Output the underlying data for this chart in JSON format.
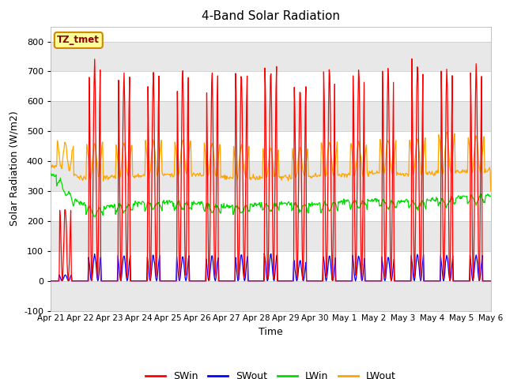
{
  "title": "4-Band Solar Radiation",
  "xlabel": "Time",
  "ylabel": "Solar Radiation (W/m2)",
  "ylim": [
    -100,
    850
  ],
  "yticks": [
    -100,
    0,
    100,
    200,
    300,
    400,
    500,
    600,
    700,
    800
  ],
  "colors": {
    "SWin": "#ff0000",
    "SWout": "#0000ff",
    "LWin": "#00dd00",
    "LWout": "#ffa500"
  },
  "fig_bg": "#ffffff",
  "plot_bg": "#ffffff",
  "grid_color": "#cccccc",
  "band_color": "#e8e8e8",
  "station_label": "TZ_tmet",
  "station_label_fg": "#8B0000",
  "station_label_bg": "#ffff99",
  "station_label_border": "#cc8800",
  "tick_labels": [
    "Apr 21",
    "Apr 22",
    "Apr 23",
    "Apr 24",
    "Apr 25",
    "Apr 26",
    "Apr 27",
    "Apr 28",
    "Apr 29",
    "Apr 30",
    "May 1",
    "May 2",
    "May 3",
    "May 4",
    "May 5",
    "May 6"
  ],
  "legend_entries": [
    "SWin",
    "SWout",
    "LWin",
    "LWout"
  ],
  "n_days": 15,
  "dt": 0.02083333
}
